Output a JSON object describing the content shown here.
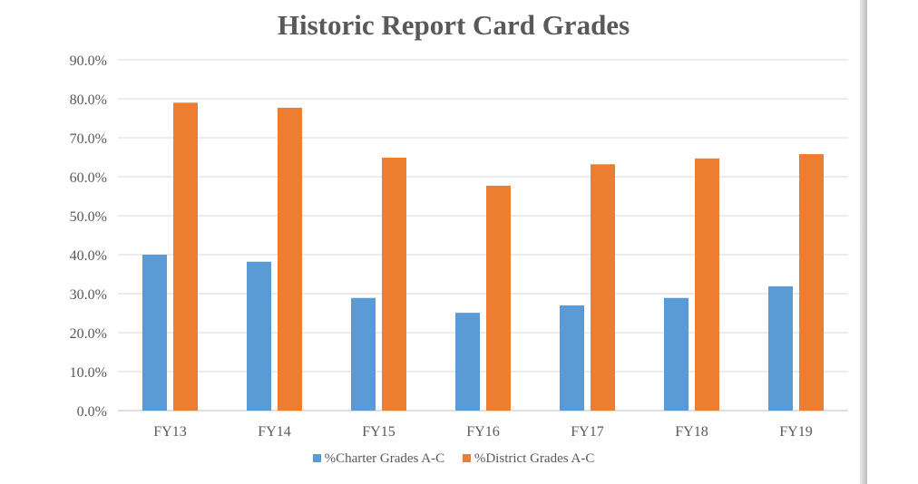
{
  "chart_data": {
    "type": "bar",
    "title": "Historic Report Card Grades",
    "categories": [
      "FY13",
      "FY14",
      "FY15",
      "FY16",
      "FY17",
      "FY18",
      "FY19"
    ],
    "series": [
      {
        "name": "%Charter Grades A-C",
        "color": "#5B9BD5",
        "values": [
          40.0,
          38.2,
          28.9,
          25.1,
          27.0,
          28.9,
          31.9
        ]
      },
      {
        "name": "%District Grades A-C",
        "color": "#ED7D31",
        "values": [
          79.0,
          77.7,
          64.9,
          57.7,
          63.2,
          64.7,
          65.8
        ]
      }
    ],
    "yticks": [
      "0.0%",
      "10.0%",
      "20.0%",
      "30.0%",
      "40.0%",
      "50.0%",
      "60.0%",
      "70.0%",
      "80.0%",
      "90.0%"
    ],
    "ylim": [
      0,
      90
    ],
    "xlabel": "",
    "ylabel": "",
    "grid": true,
    "legend": "bottom"
  }
}
